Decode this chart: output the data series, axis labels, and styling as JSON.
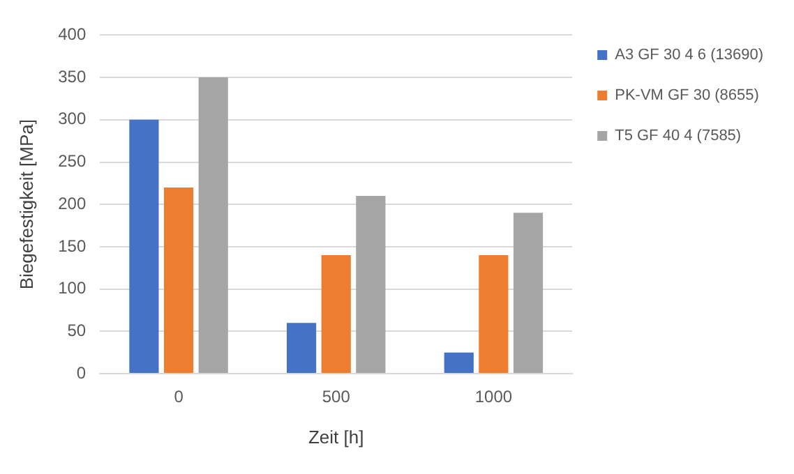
{
  "chart_data": {
    "type": "bar",
    "xlabel": "Zeit [h]",
    "ylabel": "Biegefestigkeit [MPa]",
    "categories": [
      "0",
      "500",
      "1000"
    ],
    "series": [
      {
        "name": "A3 GF 30 4 6 (13690)",
        "color": "#4472c4",
        "values": [
          300,
          60,
          25
        ]
      },
      {
        "name": "PK-VM GF 30 (8655)",
        "color": "#ed7d31",
        "values": [
          220,
          140,
          140
        ]
      },
      {
        "name": "T5 GF 40 4 (7585)",
        "color": "#a5a5a5",
        "values": [
          350,
          210,
          190
        ]
      }
    ],
    "ylim": [
      0,
      400
    ],
    "yticks": [
      0,
      50,
      100,
      150,
      200,
      250,
      300,
      350,
      400
    ],
    "grid": "y",
    "legend": "right"
  }
}
